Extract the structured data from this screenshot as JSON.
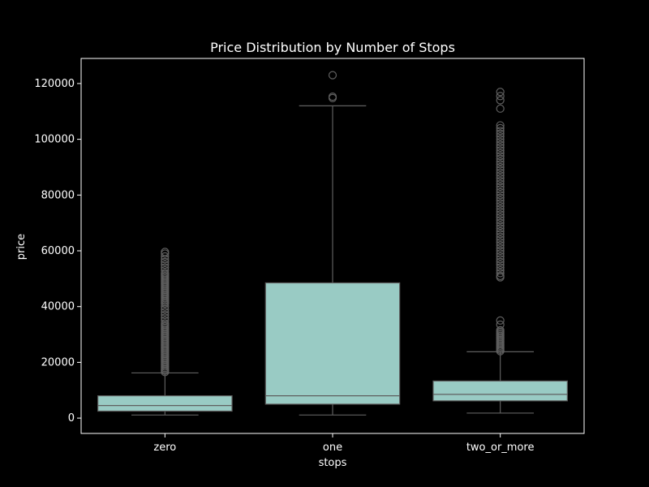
{
  "chart_data": {
    "type": "box",
    "title": "Price Distribution by Number of Stops",
    "xlabel": "stops",
    "ylabel": "price",
    "ylim": [
      -5500,
      129000
    ],
    "yticks": [
      0,
      20000,
      40000,
      60000,
      80000,
      100000,
      120000
    ],
    "ytick_labels": [
      "0",
      "20000",
      "40000",
      "60000",
      "80000",
      "100000",
      "120000"
    ],
    "grid": false,
    "colors": {
      "background": "#000000",
      "box_fill": "#99cbc4",
      "line": "#5f5f5f",
      "text": "#ffffff",
      "axis": "#ffffff"
    },
    "categories": [
      "zero",
      "one",
      "two_or_more"
    ],
    "boxes": [
      {
        "category": "zero",
        "whisker_low": 1100,
        "q1": 2500,
        "median": 4500,
        "q3": 8000,
        "whisker_high": 16200,
        "outliers": [
          16500,
          17000,
          17500,
          18000,
          18500,
          19000,
          19500,
          20000,
          20500,
          21000,
          21500,
          22000,
          22500,
          23000,
          23500,
          24000,
          24500,
          25000,
          25500,
          26000,
          26500,
          27000,
          27500,
          28000,
          28500,
          29000,
          29500,
          30000,
          30500,
          31000,
          31500,
          32000,
          32500,
          33000,
          33500,
          34000,
          35000,
          36000,
          37000,
          38000,
          39000,
          40000,
          41000,
          41500,
          42000,
          42500,
          43000,
          43500,
          44000,
          44500,
          45000,
          45500,
          46000,
          46500,
          47000,
          47500,
          48000,
          48500,
          49000,
          49500,
          50000,
          50500,
          51000,
          51500,
          52000,
          53000,
          54000,
          55000,
          56000,
          57000,
          58000,
          59000,
          59600
        ]
      },
      {
        "category": "one",
        "whisker_low": 1100,
        "q1": 5000,
        "median": 8000,
        "q3": 48500,
        "whisker_high": 112000,
        "outliers": [
          114800,
          115300,
          123000
        ]
      },
      {
        "category": "two_or_more",
        "whisker_low": 1800,
        "q1": 6200,
        "median": 8500,
        "q3": 13300,
        "whisker_high": 23800,
        "outliers": [
          24000,
          24500,
          25000,
          25500,
          26000,
          26500,
          27000,
          27500,
          28000,
          28500,
          29000,
          29500,
          30000,
          30500,
          31000,
          31500,
          33500,
          35000,
          50500,
          51000,
          52000,
          53000,
          54000,
          55000,
          56000,
          57000,
          58000,
          59000,
          60000,
          61000,
          62000,
          63000,
          64000,
          65000,
          66000,
          67000,
          68000,
          69000,
          70000,
          71000,
          72000,
          73000,
          74000,
          75000,
          76000,
          77000,
          78000,
          79000,
          80000,
          81000,
          82000,
          83000,
          84000,
          85000,
          86000,
          87000,
          88000,
          89000,
          90000,
          91000,
          92000,
          93000,
          94000,
          95000,
          96000,
          97000,
          98000,
          99000,
          100000,
          101000,
          102000,
          103000,
          104000,
          105000,
          111000,
          114000,
          115500,
          117000
        ]
      }
    ]
  }
}
